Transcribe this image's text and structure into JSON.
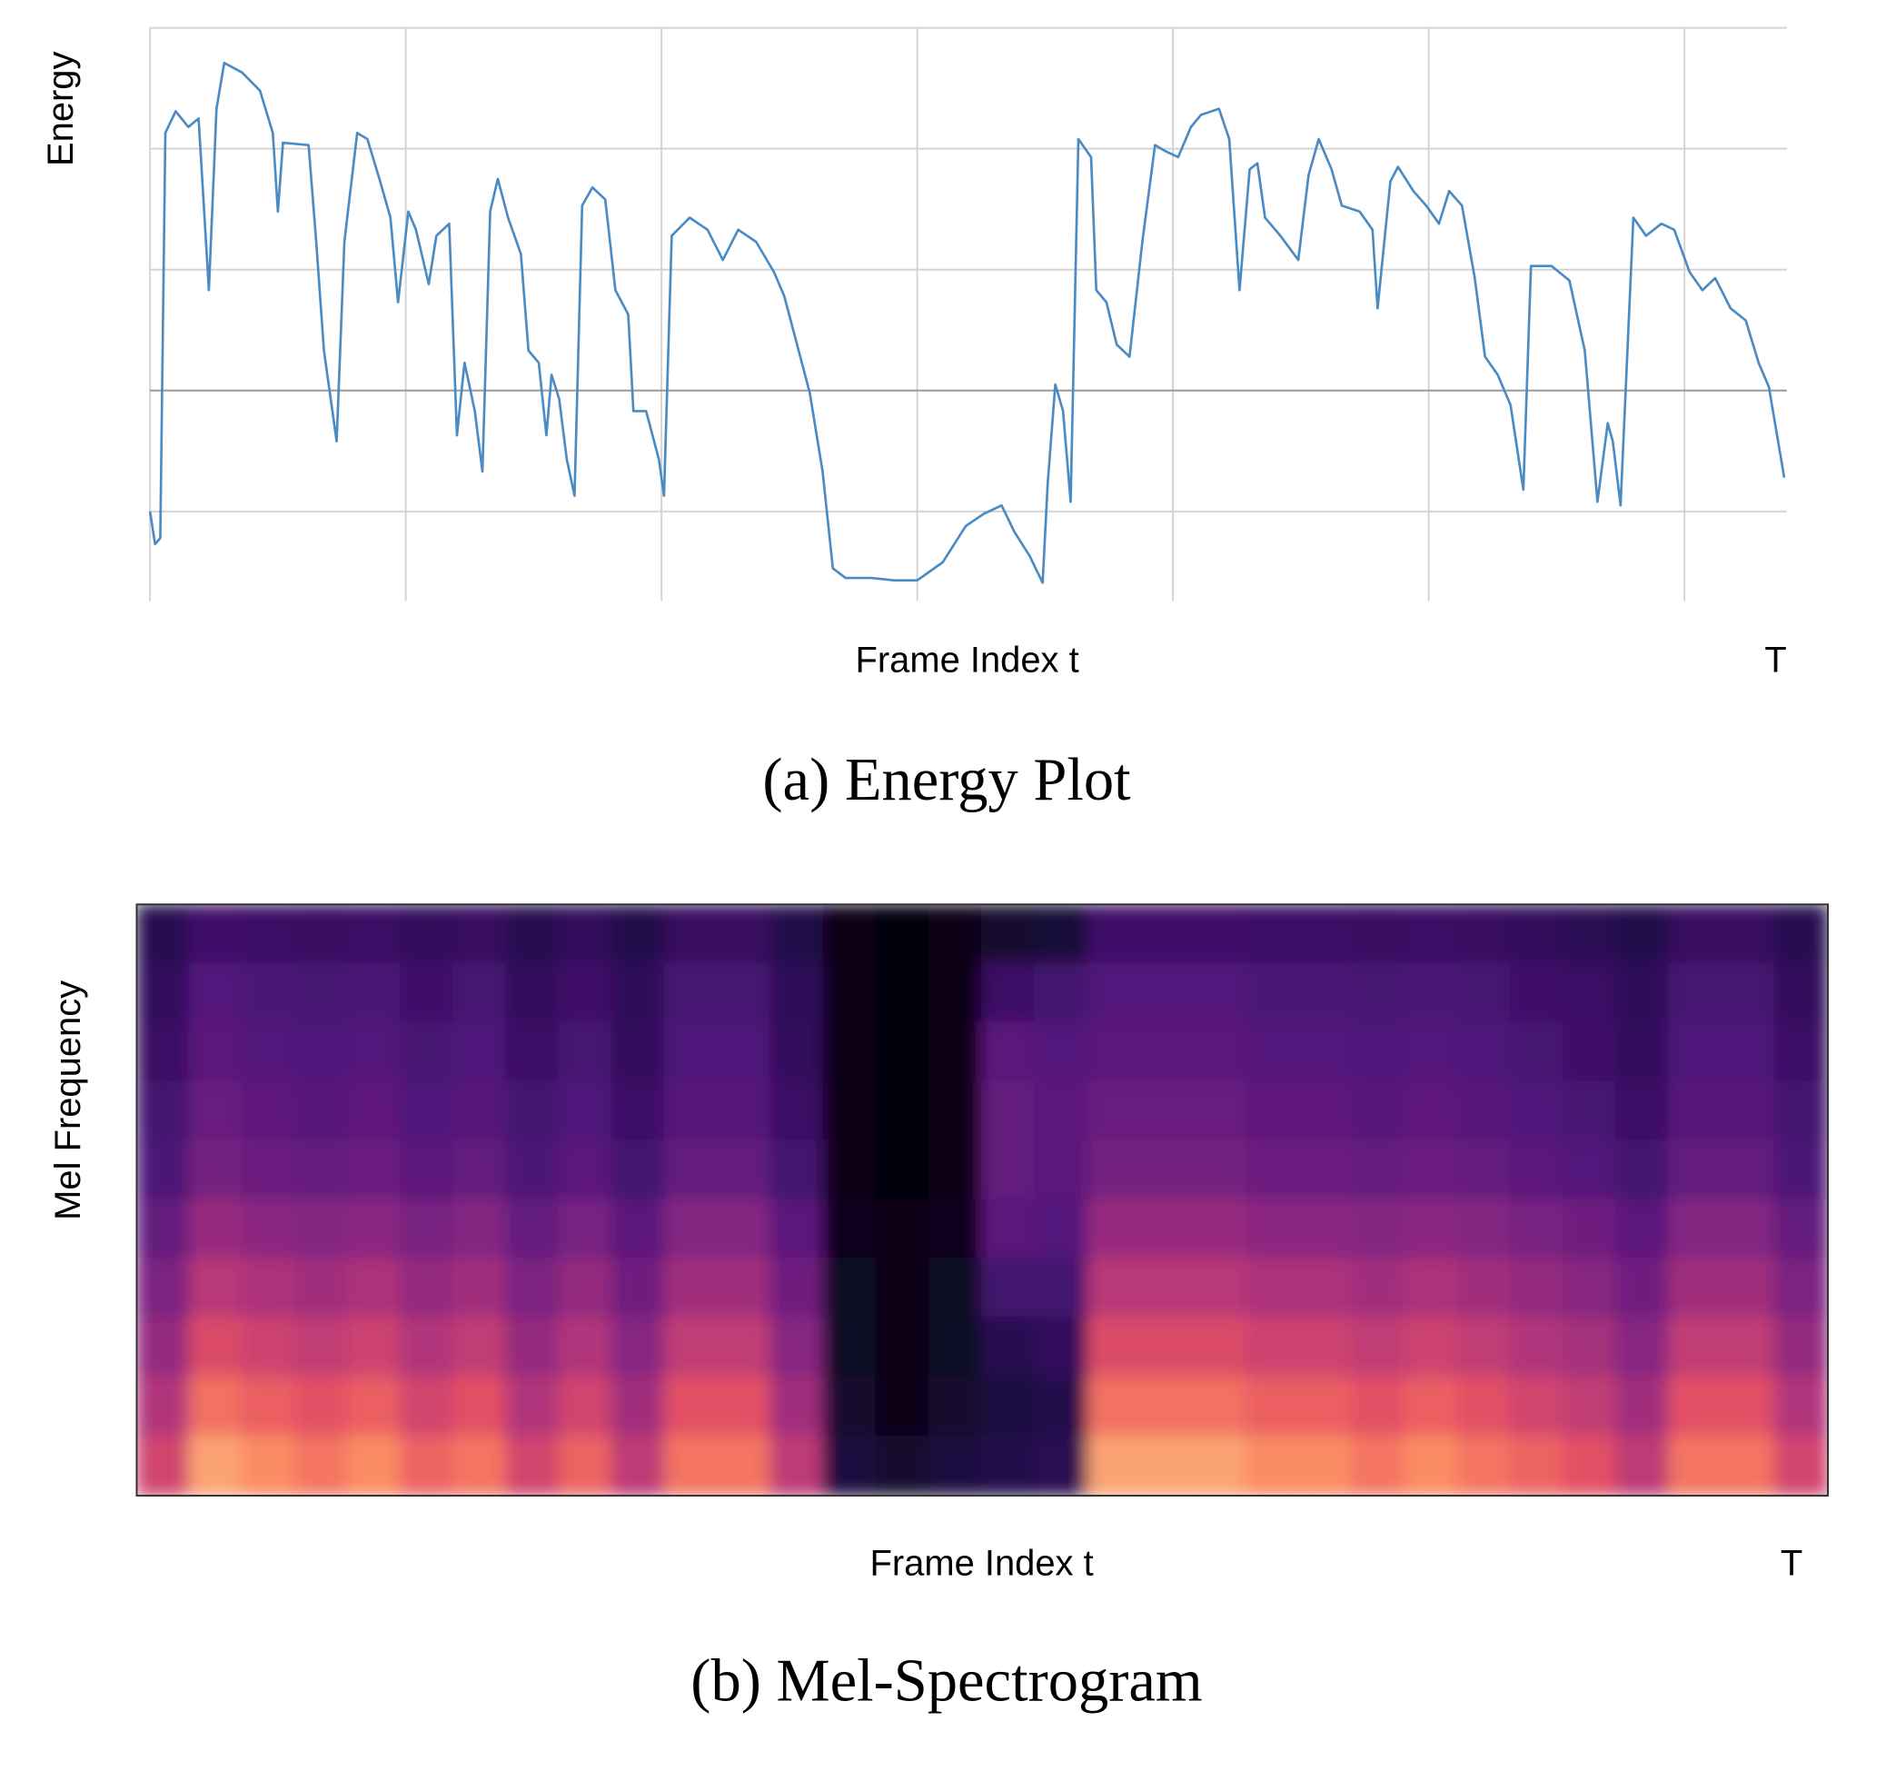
{
  "chart_data": [
    {
      "type": "line",
      "ylabel": "Energy",
      "xlabel": "Frame Index t",
      "caption": "(a) Energy Plot",
      "x": [
        0,
        2,
        4,
        6,
        10,
        15,
        19,
        23,
        26,
        29,
        36,
        43,
        48,
        50,
        52,
        62,
        65,
        68,
        73,
        76,
        81,
        85,
        90,
        94,
        97,
        101,
        104,
        109,
        112,
        117,
        120,
        123,
        127,
        130,
        133,
        136,
        140,
        145,
        148,
        152,
        155,
        157,
        160,
        163,
        166,
        169,
        173,
        178,
        182,
        187,
        189,
        194,
        199,
        201,
        204,
        211,
        218,
        224,
        230,
        237,
        244,
        248,
        253,
        258,
        263,
        267,
        272,
        282,
        291,
        300,
        310,
        319,
        326,
        333,
        338,
        344,
        349,
        351,
        354,
        357,
        360,
        363,
        368,
        370,
        374,
        378,
        383,
        388,
        393,
        397,
        402,
        407,
        411,
        418,
        422,
        426,
        430,
        433,
        436,
        442,
        449,
        453,
        457,
        462,
        466,
        473,
        478,
        480,
        485,
        488,
        494,
        499,
        504,
        508,
        513,
        518,
        522,
        527,
        532,
        537,
        540,
        548,
        555,
        561,
        566,
        570,
        572,
        575,
        580,
        585,
        591,
        596,
        602,
        607,
        612,
        618,
        624,
        629,
        633,
        639
      ],
      "series": [
        {
          "color": "#4a8bc4",
          "values": [
            1.0,
            0.73,
            0.78,
            4.13,
            4.31,
            4.18,
            4.25,
            2.83,
            4.33,
            4.71,
            4.63,
            4.48,
            4.13,
            3.48,
            4.05,
            4.03,
            3.23,
            2.33,
            1.58,
            3.23,
            4.13,
            4.08,
            3.73,
            3.43,
            2.73,
            3.48,
            3.33,
            2.88,
            3.28,
            3.38,
            1.63,
            2.23,
            1.83,
            1.33,
            3.48,
            3.75,
            3.43,
            3.13,
            2.33,
            2.23,
            1.63,
            2.13,
            1.93,
            1.43,
            1.13,
            3.53,
            3.68,
            3.58,
            2.83,
            2.63,
            1.83,
            1.83,
            1.43,
            1.13,
            3.28,
            3.43,
            3.33,
            3.08,
            3.33,
            3.23,
            2.98,
            2.78,
            2.38,
            1.98,
            1.33,
            0.53,
            0.45,
            0.45,
            0.43,
            0.43,
            0.58,
            0.88,
            0.98,
            1.05,
            0.83,
            0.63,
            0.41,
            1.23,
            2.05,
            1.83,
            1.08,
            4.08,
            3.93,
            2.83,
            2.73,
            2.38,
            2.28,
            3.23,
            4.03,
            3.98,
            3.93,
            4.18,
            4.28,
            4.33,
            4.08,
            2.83,
            3.83,
            3.88,
            3.43,
            3.28,
            3.08,
            3.78,
            4.08,
            3.83,
            3.53,
            3.48,
            3.33,
            2.68,
            3.73,
            3.85,
            3.65,
            3.53,
            3.38,
            3.65,
            3.53,
            2.93,
            2.28,
            2.13,
            1.88,
            1.18,
            3.03,
            3.03,
            2.91,
            2.33,
            1.08,
            1.73,
            1.58,
            1.05,
            3.43,
            3.28,
            3.38,
            3.33,
            2.98,
            2.83,
            2.93,
            2.68,
            2.58,
            2.23,
            2.03,
            1.28
          ]
        }
      ],
      "xlim": [
        0,
        640
      ],
      "ylim": [
        0.3,
        5.0
      ],
      "xticks": [
        {
          "value": 640,
          "label": "T"
        }
      ],
      "xgrid": [
        0,
        100,
        200,
        300,
        400,
        500,
        600
      ],
      "ygrid": [
        1,
        2,
        3,
        4,
        5
      ]
    },
    {
      "type": "heatmap",
      "ylabel": "Mel Frequency",
      "xlabel": "Frame Index t",
      "caption": "(b) Mel-Spectrogram",
      "xlim": [
        0,
        640
      ],
      "xticks": [
        {
          "value": 640,
          "label": "T"
        }
      ],
      "vlim": [
        0,
        100
      ],
      "colormap": [
        "#000004",
        "#1c1044",
        "#4f127b",
        "#812581",
        "#b5367a",
        "#e55064",
        "#fb8761",
        "#fec287",
        "#fcfdbf"
      ],
      "values": [
        [
          15,
          21,
          20,
          19,
          20,
          18,
          19,
          15,
          18,
          14,
          19,
          19,
          14,
          3,
          2,
          3,
          8,
          10,
          21,
          21,
          21,
          20,
          20,
          19,
          20,
          19,
          18,
          16,
          14,
          19,
          19,
          15
        ],
        [
          18,
          26,
          24,
          23,
          24,
          21,
          23,
          18,
          21,
          17,
          23,
          23,
          17,
          3,
          2,
          3,
          20,
          22,
          26,
          26,
          26,
          24,
          24,
          23,
          24,
          23,
          21,
          20,
          17,
          23,
          23,
          18
        ],
        [
          20,
          28,
          26,
          25,
          26,
          23,
          25,
          20,
          23,
          18,
          25,
          25,
          18,
          3,
          2,
          3,
          28,
          26,
          28,
          28,
          28,
          26,
          26,
          25,
          26,
          25,
          23,
          21,
          18,
          25,
          25,
          20
        ],
        [
          22,
          31,
          29,
          27,
          29,
          25,
          27,
          22,
          25,
          20,
          27,
          27,
          20,
          3,
          2,
          4,
          30,
          28,
          31,
          31,
          31,
          29,
          29,
          27,
          29,
          27,
          25,
          23,
          20,
          27,
          27,
          22
        ],
        [
          24,
          34,
          32,
          30,
          32,
          28,
          30,
          24,
          28,
          22,
          30,
          30,
          22,
          4,
          2,
          4,
          30,
          28,
          34,
          34,
          34,
          32,
          32,
          30,
          32,
          30,
          28,
          26,
          22,
          30,
          30,
          24
        ],
        [
          30,
          43,
          40,
          38,
          40,
          35,
          38,
          30,
          35,
          28,
          38,
          38,
          28,
          5,
          3,
          5,
          28,
          26,
          43,
          43,
          43,
          40,
          40,
          38,
          40,
          38,
          35,
          33,
          28,
          38,
          38,
          30
        ],
        [
          36,
          51,
          48,
          45,
          48,
          42,
          45,
          36,
          42,
          33,
          45,
          45,
          33,
          6,
          3,
          6,
          22,
          22,
          51,
          51,
          51,
          48,
          48,
          45,
          48,
          45,
          42,
          39,
          33,
          45,
          45,
          36
        ],
        [
          42,
          60,
          56,
          53,
          56,
          49,
          53,
          42,
          49,
          39,
          53,
          53,
          39,
          7,
          4,
          7,
          15,
          18,
          60,
          60,
          60,
          56,
          56,
          53,
          56,
          53,
          49,
          46,
          39,
          53,
          53,
          42
        ],
        [
          49,
          70,
          66,
          62,
          66,
          57,
          62,
          49,
          57,
          45,
          62,
          62,
          45,
          8,
          4,
          8,
          12,
          14,
          70,
          70,
          70,
          66,
          66,
          62,
          66,
          62,
          57,
          53,
          45,
          62,
          62,
          49
        ],
        [
          57,
          81,
          76,
          71,
          76,
          67,
          71,
          57,
          67,
          52,
          71,
          71,
          52,
          12,
          8,
          12,
          14,
          16,
          81,
          81,
          81,
          76,
          76,
          71,
          76,
          71,
          67,
          62,
          52,
          71,
          71,
          57
        ]
      ]
    }
  ]
}
